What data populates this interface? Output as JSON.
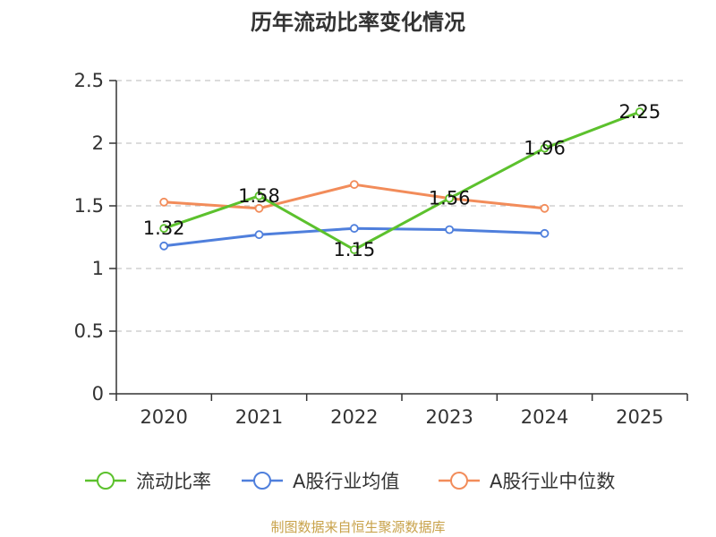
{
  "chart_data": {
    "type": "line",
    "title": "历年流动比率变化情况",
    "categories": [
      "2020",
      "2021",
      "2022",
      "2023",
      "2024",
      "2025"
    ],
    "yticks": [
      "0",
      "0.5",
      "1",
      "1.5",
      "2",
      "2.5"
    ],
    "ylim": [
      0,
      2.5
    ],
    "xlabel": "",
    "ylabel": "",
    "grid": "horizontal dashed",
    "legend_position": "bottom",
    "series": [
      {
        "name": "流动比率",
        "color": "#5cc12d",
        "values": [
          1.32,
          1.58,
          1.15,
          1.56,
          1.96,
          2.25
        ],
        "labels": [
          "1.32",
          "1.58",
          "1.15",
          "1.56",
          "1.96",
          "2.25"
        ]
      },
      {
        "name": "A股行业均值",
        "color": "#4f7fdc",
        "values": [
          1.18,
          1.27,
          1.32,
          1.31,
          1.28,
          null
        ]
      },
      {
        "name": "A股行业中位数",
        "color": "#f28c5a",
        "values": [
          1.53,
          1.48,
          1.67,
          1.56,
          1.48,
          null
        ]
      }
    ]
  },
  "footer": {
    "source": "制图数据来自恒生聚源数据库"
  }
}
